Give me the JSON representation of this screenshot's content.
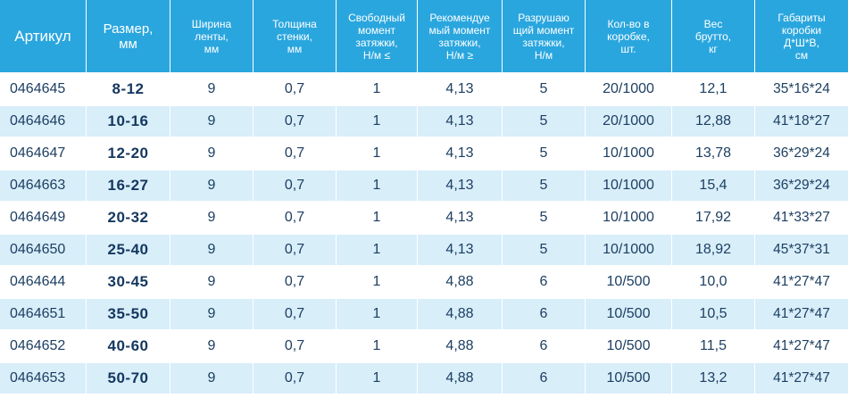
{
  "colors": {
    "header_bg": "#2aa6de",
    "stripe_bg": "#d8eef9",
    "text": "#1d3f62"
  },
  "headers": [
    "Артикул",
    "Размер,\nмм",
    "Ширина\nленты,\nмм",
    "Толщина\nстенки,\nмм",
    "Свободный\nмомент\nзатяжки,\nН/м ≤",
    "Рекомендуе\nмый момент\nзатяжки,\nН/м ≥",
    "Разрушаю\nщий момент\nзатяжки,\nН/м",
    "Кол-во в\nкоробке,\nшт.",
    "Вес\nбрутто,\nкг",
    "Габариты\nкоробки\nД*Ш*В,\nсм"
  ],
  "rows": [
    [
      "0464645",
      "8-12",
      "9",
      "0,7",
      "1",
      "4,13",
      "5",
      "20/1000",
      "12,1",
      "35*16*24"
    ],
    [
      "0464646",
      "10-16",
      "9",
      "0,7",
      "1",
      "4,13",
      "5",
      "20/1000",
      "12,88",
      "41*18*27"
    ],
    [
      "0464647",
      "12-20",
      "9",
      "0,7",
      "1",
      "4,13",
      "5",
      "10/1000",
      "13,78",
      "36*29*24"
    ],
    [
      "0464663",
      "16-27",
      "9",
      "0,7",
      "1",
      "4,13",
      "5",
      "10/1000",
      "15,4",
      "36*29*24"
    ],
    [
      "0464649",
      "20-32",
      "9",
      "0,7",
      "1",
      "4,13",
      "5",
      "10/1000",
      "17,92",
      "41*33*27"
    ],
    [
      "0464650",
      "25-40",
      "9",
      "0,7",
      "1",
      "4,13",
      "5",
      "10/1000",
      "18,92",
      "45*37*31"
    ],
    [
      "0464644",
      "30-45",
      "9",
      "0,7",
      "1",
      "4,88",
      "6",
      "10/500",
      "10,0",
      "41*27*47"
    ],
    [
      "0464651",
      "35-50",
      "9",
      "0,7",
      "1",
      "4,88",
      "6",
      "10/500",
      "10,5",
      "41*27*47"
    ],
    [
      "0464652",
      "40-60",
      "9",
      "0,7",
      "1",
      "4,88",
      "6",
      "10/500",
      "11,5",
      "41*27*47"
    ],
    [
      "0464653",
      "50-70",
      "9",
      "0,7",
      "1",
      "4,88",
      "6",
      "10/500",
      "13,2",
      "41*27*47"
    ]
  ]
}
